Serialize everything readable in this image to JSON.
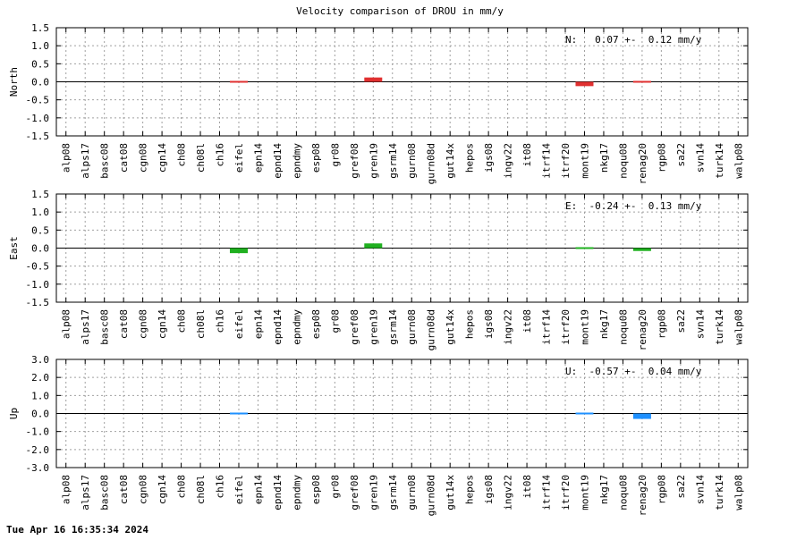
{
  "figure_title": "Velocity comparison of DROU in mm/y",
  "footer_timestamp": "Tue Apr 16 16:35:34 2024",
  "chart_data": [
    {
      "type": "bar",
      "ylabel": "North",
      "annotation": "N:   0.07 +-  0.12 mm/y",
      "color": "#e03030",
      "ylim": [
        -1.5,
        1.5
      ],
      "yticks": [
        -1.5,
        -1.0,
        -0.5,
        0.0,
        0.5,
        1.0,
        1.5
      ],
      "ytick_labels": [
        "-1.5",
        "-1.0",
        "-0.5",
        "0.0",
        "0.5",
        "1.0",
        "1.5"
      ],
      "grid": true,
      "categories": [
        "alp08",
        "alps17",
        "basc08",
        "cat08",
        "cgn08",
        "cgn14",
        "ch08",
        "ch08l",
        "ch16",
        "eifel",
        "epn14",
        "epnd14",
        "epndmy",
        "esp08",
        "gr08",
        "gref08",
        "gren19",
        "gsrm14",
        "gurn08",
        "gurn08d",
        "gut14x",
        "hepos",
        "igs08",
        "ingv22",
        "it08",
        "itrf14",
        "itrf20",
        "mont19",
        "nkg17",
        "noqu08",
        "renag20",
        "rgp08",
        "sa22",
        "svn14",
        "turk14",
        "walp08"
      ],
      "values": [
        0,
        0,
        0,
        0,
        0,
        0,
        0,
        0,
        0,
        -0.03,
        0,
        0,
        0,
        0,
        0,
        0,
        0.12,
        0,
        0,
        0,
        0,
        0,
        0,
        0,
        0,
        0,
        0,
        -0.12,
        0,
        0,
        0.02,
        0,
        0,
        0,
        0,
        0
      ]
    },
    {
      "type": "bar",
      "ylabel": "East",
      "annotation": "E:  -0.24 +-  0.13 mm/y",
      "color": "#20b020",
      "ylim": [
        -1.5,
        1.5
      ],
      "yticks": [
        -1.5,
        -1.0,
        -0.5,
        0.0,
        0.5,
        1.0,
        1.5
      ],
      "ytick_labels": [
        "-1.5",
        "-1.0",
        "-0.5",
        "0.0",
        "0.5",
        "1.0",
        "1.5"
      ],
      "grid": true,
      "categories": [
        "alp08",
        "alps17",
        "basc08",
        "cat08",
        "cgn08",
        "cgn14",
        "ch08",
        "ch08l",
        "ch16",
        "eifel",
        "epn14",
        "epnd14",
        "epndmy",
        "esp08",
        "gr08",
        "gref08",
        "gren19",
        "gsrm14",
        "gurn08",
        "gurn08d",
        "gut14x",
        "hepos",
        "igs08",
        "ingv22",
        "it08",
        "itrf14",
        "itrf20",
        "mont19",
        "nkg17",
        "noqu08",
        "renag20",
        "rgp08",
        "sa22",
        "svn14",
        "turk14",
        "walp08"
      ],
      "values": [
        0,
        0,
        0,
        0,
        0,
        0,
        0,
        0,
        0,
        -0.14,
        0,
        0,
        0,
        0,
        0,
        0,
        0.13,
        0,
        0,
        0,
        0,
        0,
        0,
        0,
        0,
        0,
        0,
        -0.02,
        0,
        0,
        -0.08,
        0,
        0,
        0,
        0,
        0
      ]
    },
    {
      "type": "bar",
      "ylabel": "Up",
      "annotation": "U:  -0.57 +-  0.04 mm/y",
      "color": "#1e90ff",
      "ylim": [
        -3.0,
        3.0
      ],
      "yticks": [
        -3.0,
        -2.0,
        -1.0,
        0.0,
        1.0,
        2.0,
        3.0
      ],
      "ytick_labels": [
        "-3.0",
        "-2.0",
        "-1.0",
        "0.0",
        "1.0",
        "2.0",
        "3.0"
      ],
      "grid": true,
      "categories": [
        "alp08",
        "alps17",
        "basc08",
        "cat08",
        "cgn08",
        "cgn14",
        "ch08",
        "ch08l",
        "ch16",
        "eifel",
        "epn14",
        "epnd14",
        "epndmy",
        "esp08",
        "gr08",
        "gref08",
        "gren19",
        "gsrm14",
        "gurn08",
        "gurn08d",
        "gut14x",
        "hepos",
        "igs08",
        "ingv22",
        "it08",
        "itrf14",
        "itrf20",
        "mont19",
        "nkg17",
        "noqu08",
        "renag20",
        "rgp08",
        "sa22",
        "svn14",
        "turk14",
        "walp08"
      ],
      "values": [
        0,
        0,
        0,
        0,
        0,
        0,
        0,
        0,
        0,
        -0.05,
        0,
        0,
        0,
        0,
        0,
        0,
        0,
        0,
        0,
        0,
        0,
        0,
        0,
        0,
        0,
        0,
        0,
        0.05,
        0,
        0,
        -0.3,
        0,
        0,
        0,
        0,
        0
      ]
    }
  ]
}
